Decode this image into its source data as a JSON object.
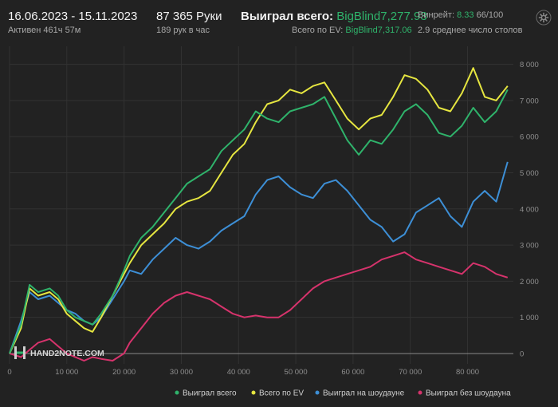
{
  "header": {
    "date_range": "16.06.2023 - 15.11.2023",
    "active_time": "Активен 461ч 57м",
    "hands": "87 365 Руки",
    "hands_per_hour": "189 рук в час",
    "won_total_label": "Выиграл всего:",
    "won_total_value": "BigBlind7,277.93",
    "ev_total_label": "Всего по EV:",
    "ev_total_value": "BigBlind7,317.06",
    "winrate_label": "Винрейт:",
    "winrate_value": "8.33",
    "winrate_unit": "66/100",
    "avg_tables": "2.9 среднее число столов"
  },
  "logo": {
    "text": "HAND2NOTE.COM"
  },
  "icons": {
    "settings": "gear-icon",
    "logo": "h2n-logo-icon"
  },
  "chart_data": {
    "type": "line",
    "title": "",
    "xlabel": "",
    "ylabel": "",
    "xlim": [
      0,
      88000
    ],
    "ylim": [
      -200,
      8500
    ],
    "x_ticks": [
      0,
      10000,
      20000,
      30000,
      40000,
      50000,
      60000,
      70000,
      80000
    ],
    "x_tick_labels": [
      "0",
      "10 000",
      "20 000",
      "30 000",
      "40 000",
      "50 000",
      "60 000",
      "70 000",
      "80 000"
    ],
    "y_ticks": [
      0,
      1000,
      2000,
      3000,
      4000,
      5000,
      6000,
      7000,
      8000
    ],
    "y_tick_labels": [
      "0",
      "1 000",
      "2 000",
      "3 000",
      "4 000",
      "5 000",
      "6 000",
      "7 000",
      "8 000"
    ],
    "y_axis_side": "right",
    "grid": true,
    "legend_position": "bottom-right",
    "series": [
      {
        "name": "Выиграл всего",
        "color": "#2fb36b",
        "x": [
          0,
          2000,
          3500,
          5000,
          7000,
          8500,
          10000,
          11500,
          13000,
          14500,
          16000,
          18000,
          20000,
          21000,
          23000,
          25000,
          27000,
          29000,
          31000,
          33000,
          35000,
          37000,
          39000,
          41000,
          43000,
          45000,
          47000,
          49000,
          51000,
          53000,
          55000,
          57000,
          59000,
          61000,
          63000,
          65000,
          67000,
          69000,
          71000,
          73000,
          75000,
          77000,
          79000,
          81000,
          83000,
          85000,
          87000
        ],
        "y": [
          0,
          800,
          1900,
          1700,
          1800,
          1600,
          1200,
          1000,
          900,
          800,
          1100,
          1600,
          2300,
          2700,
          3200,
          3500,
          3900,
          4300,
          4700,
          4900,
          5100,
          5600,
          5900,
          6200,
          6700,
          6500,
          6400,
          6700,
          6800,
          6900,
          7100,
          6500,
          5900,
          5500,
          5900,
          5800,
          6200,
          6700,
          6900,
          6600,
          6100,
          6000,
          6300,
          6800,
          6400,
          6700,
          7300
        ]
      },
      {
        "name": "Всего по EV",
        "color": "#e6e640",
        "x": [
          0,
          2000,
          3500,
          5000,
          7000,
          8500,
          10000,
          11500,
          13000,
          14500,
          16000,
          18000,
          20000,
          21000,
          23000,
          25000,
          27000,
          29000,
          31000,
          33000,
          35000,
          37000,
          39000,
          41000,
          43000,
          45000,
          47000,
          49000,
          51000,
          53000,
          55000,
          57000,
          59000,
          61000,
          63000,
          65000,
          67000,
          69000,
          71000,
          73000,
          75000,
          77000,
          79000,
          81000,
          83000,
          85000,
          87000
        ],
        "y": [
          0,
          700,
          1800,
          1600,
          1700,
          1500,
          1100,
          900,
          700,
          600,
          1000,
          1600,
          2200,
          2500,
          3000,
          3300,
          3600,
          4000,
          4200,
          4300,
          4500,
          5000,
          5500,
          5800,
          6400,
          6900,
          7000,
          7300,
          7200,
          7400,
          7500,
          7000,
          6500,
          6200,
          6500,
          6600,
          7100,
          7700,
          7600,
          7300,
          6800,
          6700,
          7200,
          7900,
          7100,
          7000,
          7400
        ]
      },
      {
        "name": "Выиграл на шоудауне",
        "color": "#3d8fd6",
        "x": [
          0,
          2000,
          3500,
          5000,
          7000,
          8500,
          10000,
          11500,
          13000,
          14500,
          16000,
          18000,
          20000,
          21000,
          23000,
          25000,
          27000,
          29000,
          31000,
          33000,
          35000,
          37000,
          39000,
          41000,
          43000,
          45000,
          47000,
          49000,
          51000,
          53000,
          55000,
          57000,
          59000,
          61000,
          63000,
          65000,
          67000,
          69000,
          71000,
          73000,
          75000,
          77000,
          79000,
          81000,
          83000,
          85000,
          87000
        ],
        "y": [
          0,
          900,
          1700,
          1500,
          1600,
          1400,
          1200,
          1100,
          900,
          800,
          1000,
          1500,
          2000,
          2300,
          2200,
          2600,
          2900,
          3200,
          3000,
          2900,
          3100,
          3400,
          3600,
          3800,
          4400,
          4800,
          4900,
          4600,
          4400,
          4300,
          4700,
          4800,
          4500,
          4100,
          3700,
          3500,
          3100,
          3300,
          3900,
          4100,
          4300,
          3800,
          3500,
          4200,
          4500,
          4200,
          5300
        ]
      },
      {
        "name": "Выиграл без шоудауна",
        "color": "#d6336c",
        "x": [
          0,
          2000,
          3500,
          5000,
          7000,
          8500,
          10000,
          11500,
          13000,
          14500,
          16000,
          18000,
          20000,
          21000,
          23000,
          25000,
          27000,
          29000,
          31000,
          33000,
          35000,
          37000,
          39000,
          41000,
          43000,
          45000,
          47000,
          49000,
          51000,
          53000,
          55000,
          57000,
          59000,
          61000,
          63000,
          65000,
          67000,
          69000,
          71000,
          73000,
          75000,
          77000,
          79000,
          81000,
          83000,
          85000,
          87000
        ],
        "y": [
          0,
          -100,
          100,
          300,
          400,
          200,
          0,
          -100,
          -200,
          -100,
          -150,
          -200,
          0,
          300,
          700,
          1100,
          1400,
          1600,
          1700,
          1600,
          1500,
          1300,
          1100,
          1000,
          1050,
          1000,
          1000,
          1200,
          1500,
          1800,
          2000,
          2100,
          2200,
          2300,
          2400,
          2600,
          2700,
          2800,
          2600,
          2500,
          2400,
          2300,
          2200,
          2500,
          2400,
          2200,
          2100
        ]
      }
    ]
  }
}
